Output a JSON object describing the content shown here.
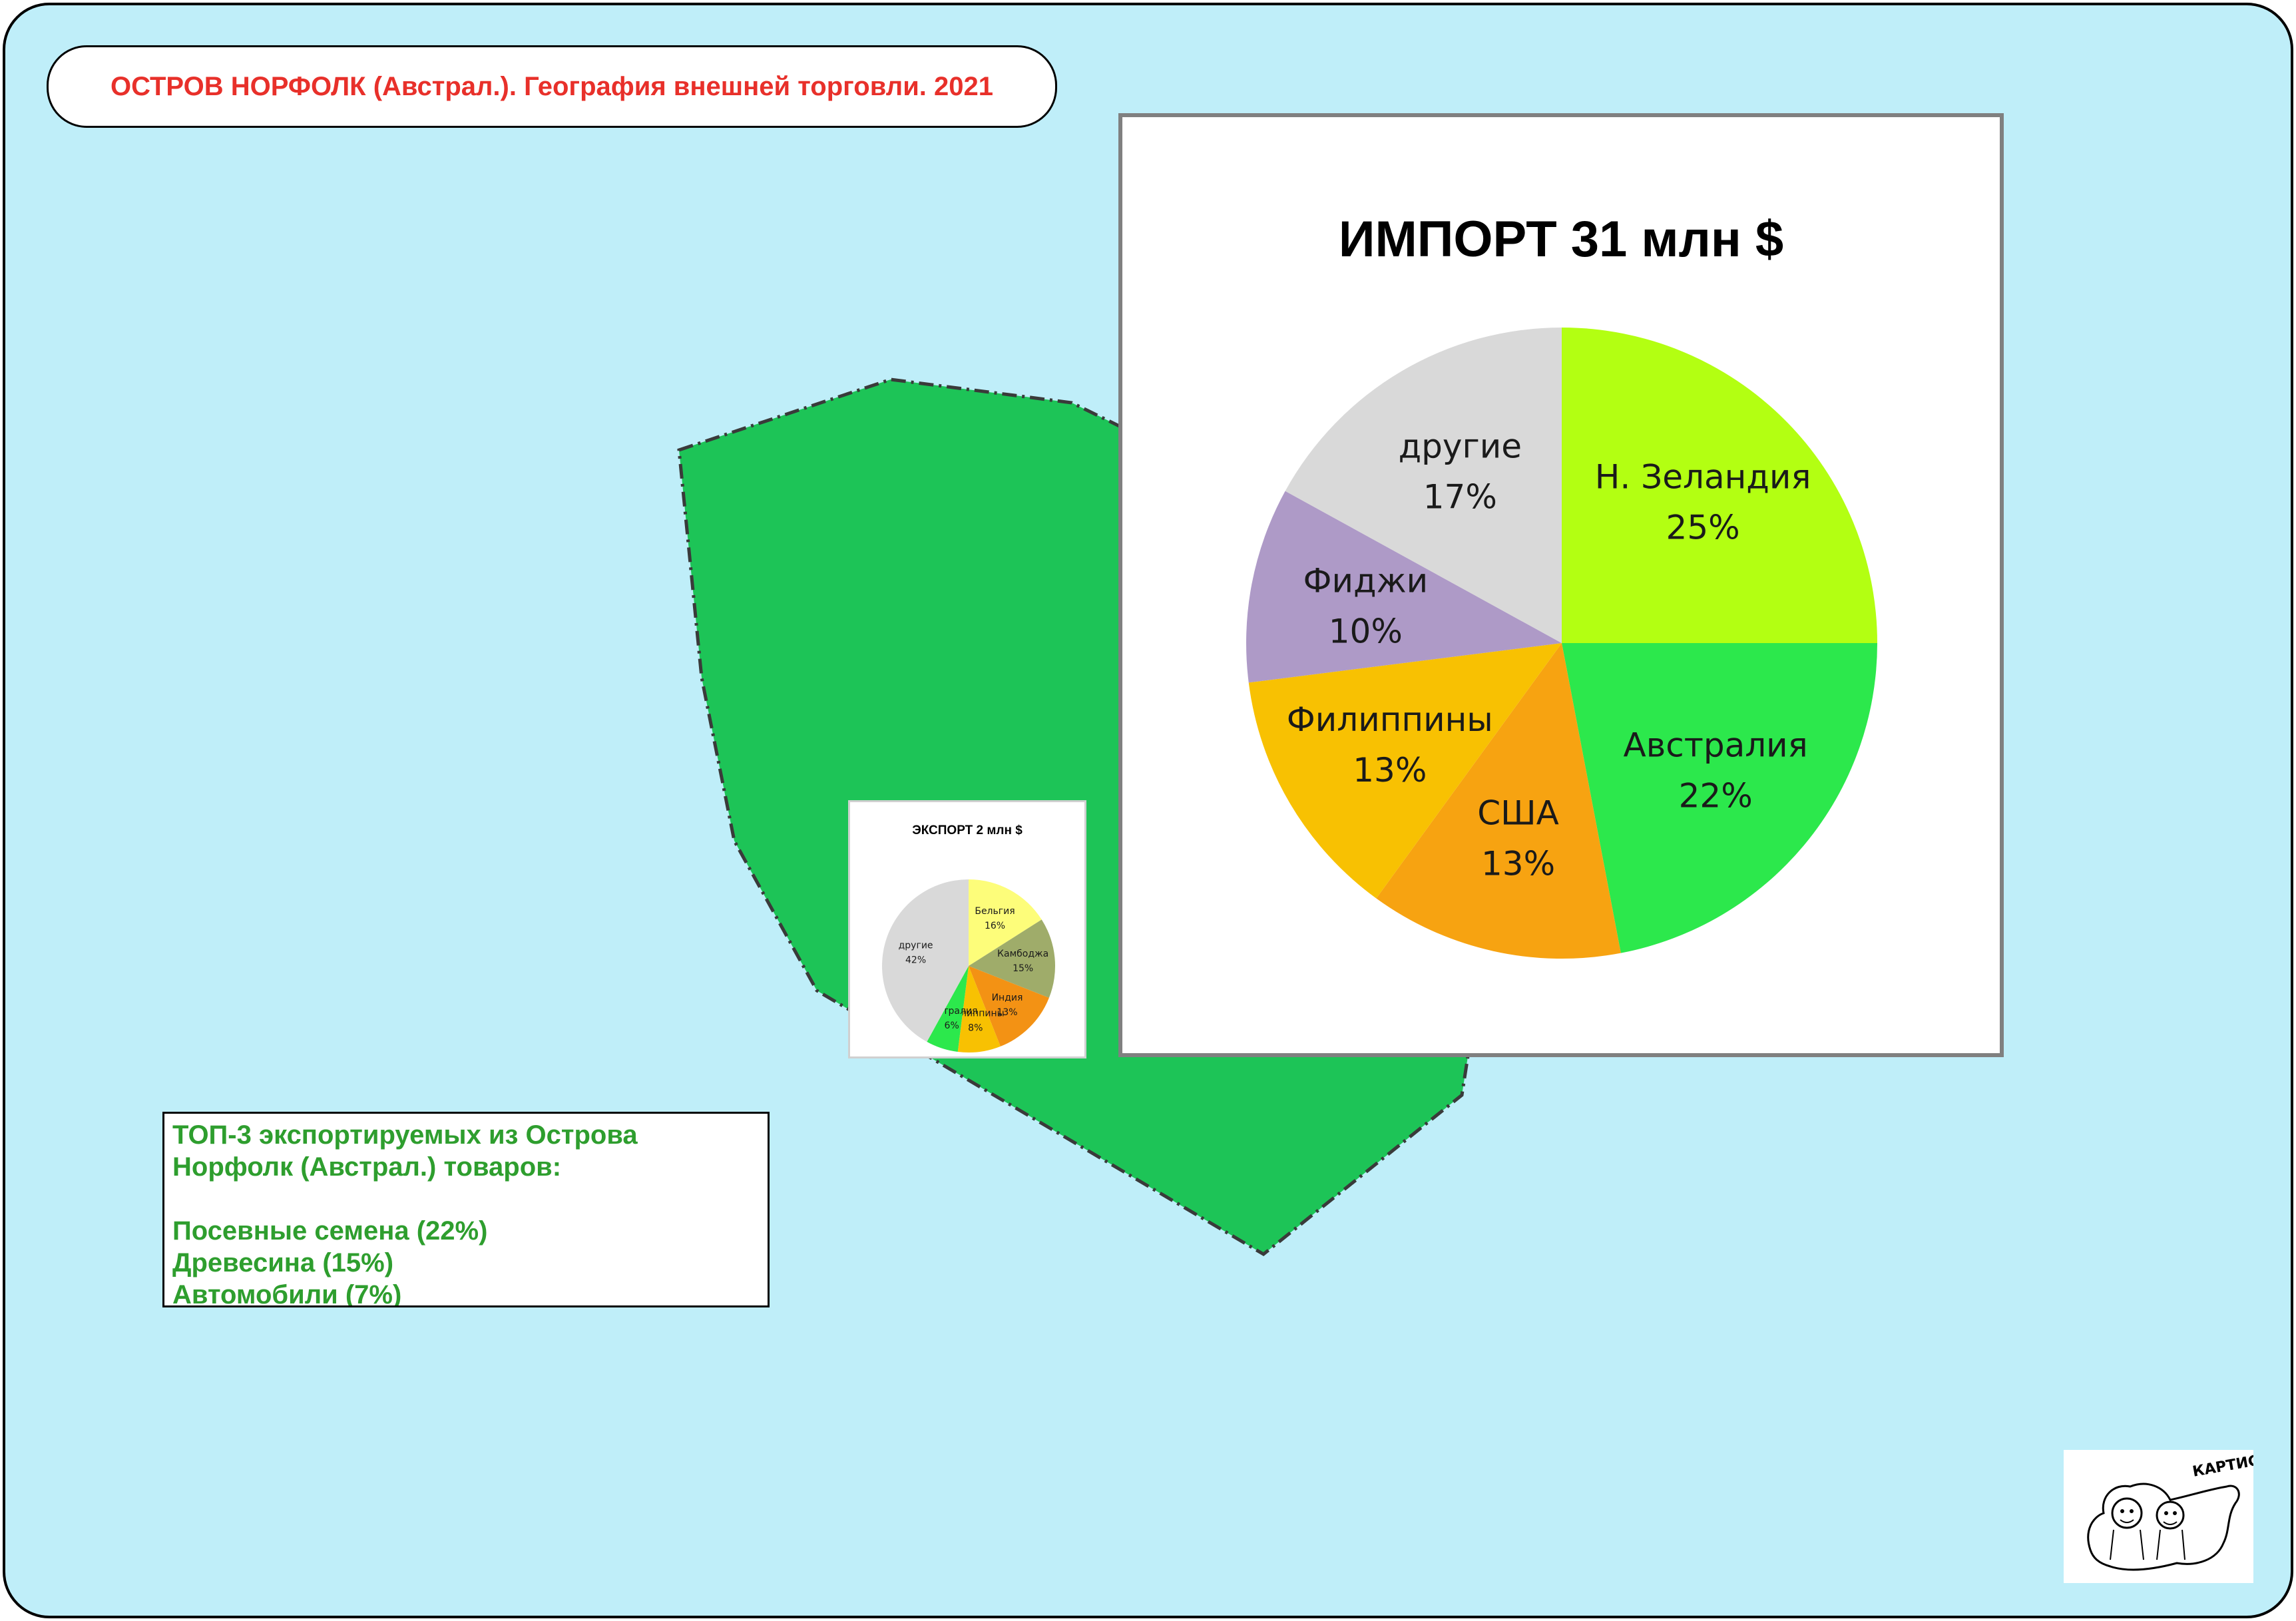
{
  "title": "ОСТРОВ НОРФОЛК (Австрал.). География внешней торговли. 2021",
  "colors": {
    "sea": "#bfeef9",
    "island": "#1dc457",
    "title_text": "#e8302a",
    "top3_text": "#2e9e2e"
  },
  "chart_data": [
    {
      "type": "pie",
      "title": "ИМПОРТ 31 млн $",
      "slices": [
        {
          "label": "Н. Зеландия",
          "value": 25,
          "pct_label": "25%",
          "color": "#b3ff12"
        },
        {
          "label": "Австралия",
          "value": 22,
          "pct_label": "22%",
          "color": "#2ce84c"
        },
        {
          "label": "США",
          "value": 13,
          "pct_label": "13%",
          "color": "#f7a311"
        },
        {
          "label": "Филиппины",
          "value": 13,
          "pct_label": "13%",
          "color": "#f8c102"
        },
        {
          "label": "Фиджи",
          "value": 10,
          "pct_label": "10%",
          "color": "#ae9ac7"
        },
        {
          "label": "другие",
          "value": 17,
          "pct_label": "17%",
          "color": "#d9d9d9"
        }
      ]
    },
    {
      "type": "pie",
      "title": "ЭКСПОРТ 2 млн $",
      "slices": [
        {
          "label": "Бельгия",
          "value": 16,
          "pct_label": "16%",
          "color": "#fdfd7a"
        },
        {
          "label": "Камбоджа",
          "value": 15,
          "pct_label": "15%",
          "color": "#9fac6a"
        },
        {
          "label": "Индия",
          "value": 13,
          "pct_label": "13%",
          "color": "#f39214"
        },
        {
          "label": "Филиппины",
          "value": 8,
          "pct_label": "8%",
          "color": "#f8c102"
        },
        {
          "label": "Австралия",
          "value": 6,
          "pct_label": "6%",
          "color": "#2ce84c"
        },
        {
          "label": "другие",
          "value": 42,
          "pct_label": "42%",
          "color": "#d9d9d9"
        }
      ]
    }
  ],
  "top3": {
    "heading_line1": "ТОП-3 экспортируемых из Острова",
    "heading_line2": "Норфолк (Австрал.) товаров:",
    "items": [
      "Посевные семена (22%)",
      "Древесина (15%)",
      "Автомобили (7%)"
    ]
  },
  "logo": {
    "text": "КАРТИСТ"
  }
}
